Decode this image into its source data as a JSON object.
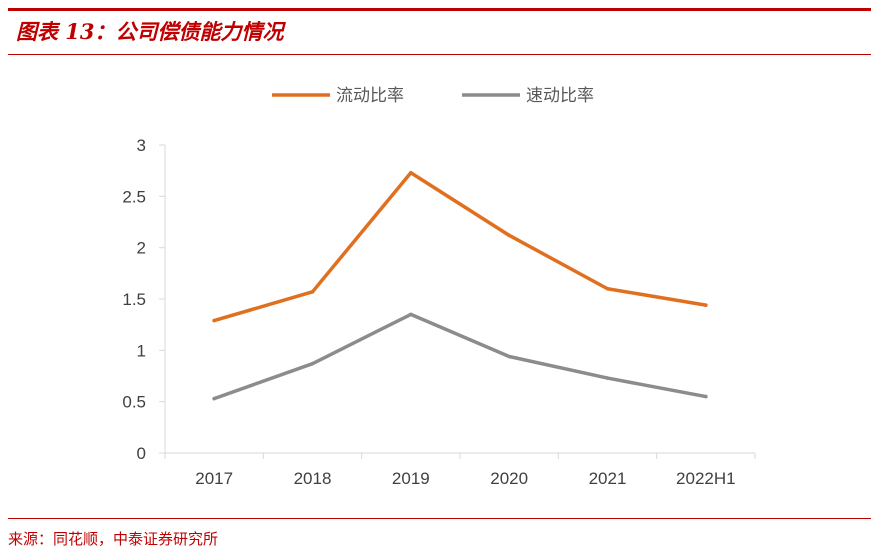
{
  "figure": {
    "title": "图表 13：公司偿债能力情况",
    "source": "来源：同花顺，中泰证券研究所"
  },
  "colors": {
    "accent": "#c00000",
    "series_current": "#e07020",
    "series_quick": "#8c8c8c",
    "axis": "#d9d9d9",
    "text": "#404040"
  },
  "chart_data": {
    "type": "line",
    "categories": [
      "2017",
      "2018",
      "2019",
      "2020",
      "2021",
      "2022H1"
    ],
    "series": [
      {
        "name": "流动比率",
        "values": [
          1.29,
          1.57,
          2.73,
          2.12,
          1.6,
          1.44
        ]
      },
      {
        "name": "速动比率",
        "values": [
          0.53,
          0.87,
          1.35,
          0.94,
          0.73,
          0.55
        ]
      }
    ],
    "ylim": [
      0,
      3
    ],
    "yticks": [
      "0",
      "0.5",
      "1",
      "1.5",
      "2",
      "2.5",
      "3"
    ],
    "grid": false,
    "legend": "top"
  }
}
